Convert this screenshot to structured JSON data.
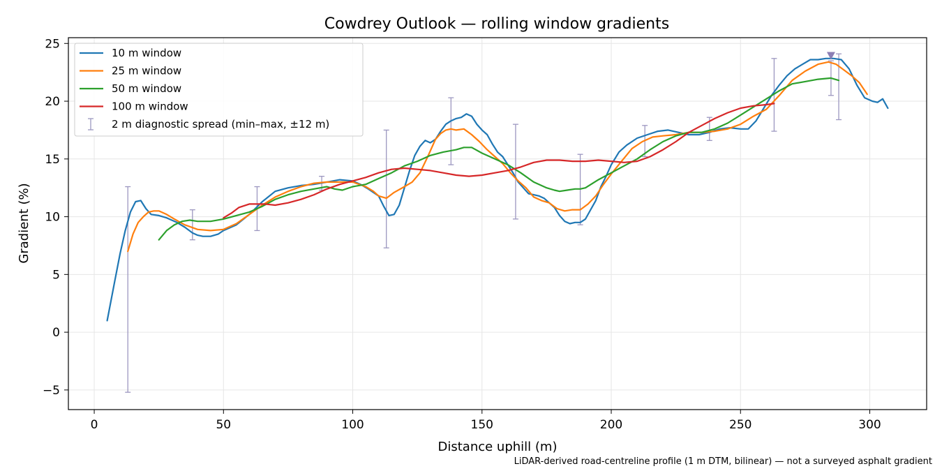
{
  "chart_data": {
    "type": "line",
    "title": "Cowdrey Outlook — rolling window gradients",
    "xlabel": "Distance uphill (m)",
    "ylabel": "Gradient (%)",
    "footnote": "LiDAR-derived road-centreline profile (1 m DTM, bilinear) — not a surveyed asphalt gradient",
    "xlim": [
      -10,
      322
    ],
    "ylim": [
      -6.7,
      25.5
    ],
    "xticks": [
      0,
      50,
      100,
      150,
      200,
      250,
      300
    ],
    "yticks": [
      -5,
      0,
      5,
      10,
      15,
      20,
      25
    ],
    "grid": true,
    "legend_position": "top-left",
    "series": [
      {
        "name": "10 m window",
        "color": "#1f77b4",
        "x": [
          5,
          8,
          10,
          12,
          14,
          16,
          18,
          20,
          22,
          25,
          28,
          32,
          35,
          38,
          40,
          42,
          45,
          48,
          50,
          55,
          60,
          65,
          70,
          75,
          80,
          85,
          90,
          95,
          100,
          103,
          106,
          110,
          112,
          114,
          116,
          118,
          120,
          122,
          124,
          126,
          128,
          130,
          132,
          134,
          136,
          138,
          140,
          142,
          144,
          146,
          148,
          150,
          152,
          154,
          156,
          158,
          160,
          162,
          164,
          166,
          168,
          170,
          172,
          174,
          176,
          178,
          180,
          182,
          184,
          186,
          188,
          190,
          192,
          194,
          196,
          198,
          200,
          203,
          206,
          210,
          214,
          218,
          222,
          226,
          230,
          234,
          238,
          242,
          246,
          250,
          253,
          256,
          259,
          262,
          265,
          268,
          271,
          274,
          277,
          280,
          283,
          286,
          289,
          292,
          295,
          298,
          301,
          303,
          305,
          307
        ],
        "y": [
          1.0,
          4.5,
          6.8,
          8.8,
          10.4,
          11.3,
          11.4,
          10.7,
          10.2,
          10.1,
          9.9,
          9.5,
          9.1,
          8.6,
          8.4,
          8.3,
          8.3,
          8.5,
          8.8,
          9.3,
          10.2,
          11.3,
          12.2,
          12.5,
          12.7,
          12.8,
          13.0,
          13.2,
          13.1,
          12.8,
          12.4,
          11.8,
          10.9,
          10.1,
          10.2,
          11.0,
          12.5,
          14.0,
          15.3,
          16.1,
          16.6,
          16.4,
          16.7,
          17.4,
          18.0,
          18.3,
          18.5,
          18.6,
          18.9,
          18.7,
          18.0,
          17.5,
          17.1,
          16.3,
          15.6,
          15.2,
          14.5,
          13.8,
          13.0,
          12.5,
          12.0,
          11.9,
          11.8,
          11.6,
          11.2,
          10.8,
          10.1,
          9.6,
          9.4,
          9.5,
          9.5,
          9.8,
          10.6,
          11.4,
          12.6,
          13.5,
          14.5,
          15.6,
          16.2,
          16.8,
          17.1,
          17.4,
          17.5,
          17.3,
          17.1,
          17.1,
          17.3,
          17.6,
          17.7,
          17.6,
          17.6,
          18.3,
          19.4,
          20.5,
          21.4,
          22.2,
          22.8,
          23.2,
          23.6,
          23.6,
          23.7,
          23.7,
          23.6,
          22.8,
          21.4,
          20.3,
          20.0,
          19.9,
          20.2,
          19.4
        ]
      },
      {
        "name": "25 m window",
        "color": "#ff7f0e",
        "x": [
          13,
          15,
          17,
          19,
          21,
          23,
          25,
          28,
          31,
          35,
          40,
          45,
          50,
          55,
          60,
          65,
          70,
          75,
          80,
          85,
          90,
          95,
          100,
          105,
          108,
          110,
          113,
          116,
          120,
          123,
          126,
          129,
          132,
          134,
          136,
          138,
          140,
          143,
          146,
          149,
          152,
          155,
          158,
          161,
          164,
          167,
          170,
          173,
          176,
          179,
          182,
          185,
          188,
          191,
          194,
          197,
          200,
          204,
          208,
          212,
          216,
          220,
          225,
          230,
          235,
          240,
          245,
          250,
          255,
          260,
          265,
          270,
          275,
          280,
          284,
          287,
          290,
          293,
          296,
          299
        ],
        "y": [
          7.0,
          8.5,
          9.5,
          10.0,
          10.4,
          10.5,
          10.5,
          10.2,
          9.8,
          9.3,
          8.9,
          8.8,
          8.9,
          9.4,
          10.2,
          11.0,
          11.7,
          12.2,
          12.6,
          12.9,
          13.0,
          13.0,
          13.0,
          12.6,
          12.2,
          11.8,
          11.6,
          12.1,
          12.6,
          13.0,
          13.8,
          15.2,
          16.7,
          17.2,
          17.5,
          17.6,
          17.5,
          17.6,
          17.1,
          16.5,
          15.8,
          15.2,
          14.6,
          13.8,
          13.1,
          12.5,
          11.7,
          11.4,
          11.2,
          10.7,
          10.5,
          10.6,
          10.6,
          11.1,
          11.8,
          12.8,
          13.7,
          14.8,
          15.9,
          16.5,
          16.9,
          17.0,
          17.1,
          17.3,
          17.3,
          17.4,
          17.6,
          18.0,
          18.7,
          19.3,
          20.5,
          21.8,
          22.6,
          23.2,
          23.4,
          23.2,
          22.7,
          22.2,
          21.6,
          20.6
        ]
      },
      {
        "name": "50 m window",
        "color": "#2ca02c",
        "x": [
          25,
          28,
          31,
          34,
          37,
          40,
          45,
          50,
          55,
          60,
          65,
          70,
          75,
          80,
          85,
          90,
          93,
          96,
          100,
          105,
          110,
          115,
          120,
          125,
          130,
          135,
          140,
          143,
          146,
          150,
          155,
          160,
          165,
          170,
          175,
          178,
          180,
          183,
          186,
          188,
          190,
          195,
          200,
          205,
          210,
          215,
          220,
          225,
          230,
          235,
          240,
          245,
          250,
          255,
          260,
          265,
          270,
          275,
          280,
          285,
          288
        ],
        "y": [
          8.0,
          8.8,
          9.3,
          9.6,
          9.7,
          9.6,
          9.6,
          9.8,
          10.1,
          10.4,
          10.9,
          11.5,
          11.9,
          12.2,
          12.4,
          12.6,
          12.4,
          12.3,
          12.6,
          12.8,
          13.3,
          13.8,
          14.4,
          14.8,
          15.3,
          15.6,
          15.8,
          16.0,
          16.0,
          15.5,
          15.0,
          14.5,
          13.8,
          13.0,
          12.5,
          12.3,
          12.2,
          12.3,
          12.4,
          12.4,
          12.5,
          13.2,
          13.8,
          14.4,
          15.0,
          15.8,
          16.5,
          17.0,
          17.3,
          17.3,
          17.6,
          18.1,
          18.8,
          19.5,
          20.2,
          20.9,
          21.5,
          21.7,
          21.9,
          22.0,
          21.8
        ]
      },
      {
        "name": "100 m window",
        "color": "#d62728",
        "x": [
          50,
          53,
          56,
          60,
          63,
          66,
          70,
          75,
          80,
          85,
          90,
          95,
          100,
          105,
          110,
          115,
          120,
          125,
          130,
          135,
          140,
          145,
          150,
          155,
          160,
          165,
          170,
          175,
          180,
          185,
          190,
          195,
          200,
          205,
          210,
          215,
          220,
          225,
          230,
          235,
          240,
          245,
          250,
          255,
          260,
          263
        ],
        "y": [
          9.9,
          10.3,
          10.8,
          11.1,
          11.1,
          11.1,
          11.0,
          11.2,
          11.5,
          11.9,
          12.4,
          12.8,
          13.1,
          13.4,
          13.8,
          14.1,
          14.2,
          14.1,
          14.0,
          13.8,
          13.6,
          13.5,
          13.6,
          13.8,
          14.0,
          14.3,
          14.7,
          14.9,
          14.9,
          14.8,
          14.8,
          14.9,
          14.8,
          14.7,
          14.8,
          15.2,
          15.8,
          16.5,
          17.3,
          17.9,
          18.5,
          19.0,
          19.4,
          19.6,
          19.7,
          19.8
        ]
      }
    ],
    "error_bars": {
      "name": "2 m diagnostic spread (min–max, ±12 m)",
      "color": "#9c97c0",
      "x": [
        13,
        38,
        63,
        88,
        113,
        138,
        163,
        188,
        213,
        238,
        263,
        288
      ],
      "low": [
        -5.2,
        8.0,
        8.8,
        12.3,
        7.3,
        14.5,
        9.8,
        9.3,
        15.2,
        16.6,
        17.4,
        18.4
      ],
      "high": [
        12.6,
        10.6,
        12.6,
        13.5,
        17.5,
        20.3,
        18.0,
        15.4,
        17.9,
        18.6,
        23.7,
        24.1
      ]
    },
    "extra_error_bar": {
      "x": 285,
      "low": 20.5,
      "high": 23.5
    },
    "peak_marker": {
      "x": 285,
      "y": 23.9,
      "color": "#8c7fb5"
    }
  }
}
